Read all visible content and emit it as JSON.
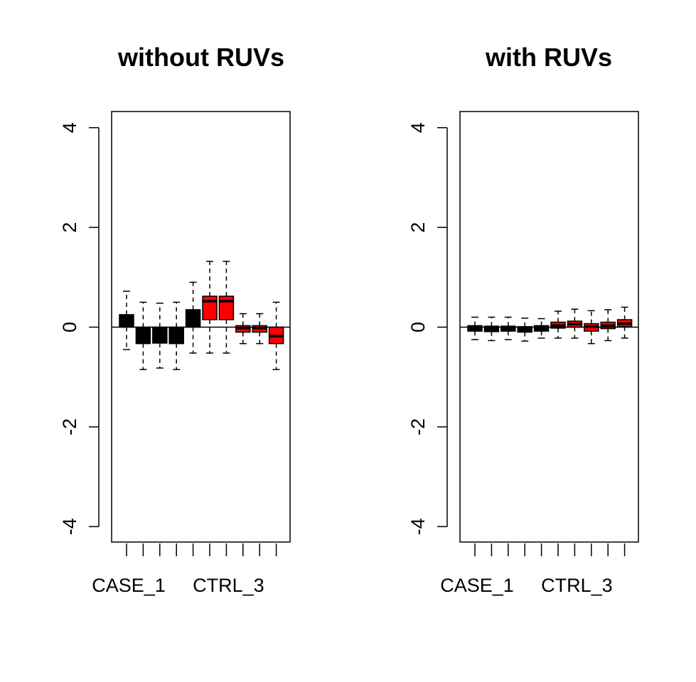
{
  "colors": {
    "case": "#000000",
    "ctrl": "#ff0000",
    "median": "#000000",
    "axis": "#000000",
    "background": "#ffffff"
  },
  "chart_data": [
    {
      "type": "boxplot",
      "title": "without RUVs",
      "xlabel": "",
      "ylabel": "",
      "ylim": [
        -4.3,
        4.3
      ],
      "yticks": [
        -4,
        -2,
        0,
        2,
        4
      ],
      "ytick_labels": [
        "-4",
        "-2",
        "0",
        "2",
        "4"
      ],
      "reference_line": 0,
      "n_boxes": 10,
      "visible_category_labels": [
        {
          "index": 0,
          "label": "CASE_1"
        },
        {
          "index": 6,
          "label": "CTRL_3"
        }
      ],
      "boxes": [
        {
          "group": "case",
          "whisker_low": -0.45,
          "q1": 0.0,
          "median": 0.15,
          "q3": 0.25,
          "whisker_high": 0.72
        },
        {
          "group": "case",
          "whisker_low": -0.85,
          "q1": -0.33,
          "median": -0.2,
          "q3": 0.0,
          "whisker_high": 0.5
        },
        {
          "group": "case",
          "whisker_low": -0.82,
          "q1": -0.32,
          "median": -0.18,
          "q3": 0.0,
          "whisker_high": 0.48
        },
        {
          "group": "case",
          "whisker_low": -0.85,
          "q1": -0.33,
          "median": -0.2,
          "q3": 0.0,
          "whisker_high": 0.5
        },
        {
          "group": "case",
          "whisker_low": -0.52,
          "q1": 0.0,
          "median": 0.2,
          "q3": 0.35,
          "whisker_high": 0.9
        },
        {
          "group": "ctrl",
          "whisker_low": -0.52,
          "q1": 0.15,
          "median": 0.52,
          "q3": 0.62,
          "whisker_high": 1.32
        },
        {
          "group": "ctrl",
          "whisker_low": -0.52,
          "q1": 0.15,
          "median": 0.52,
          "q3": 0.62,
          "whisker_high": 1.32
        },
        {
          "group": "ctrl",
          "whisker_low": -0.33,
          "q1": -0.1,
          "median": -0.02,
          "q3": 0.03,
          "whisker_high": 0.27
        },
        {
          "group": "ctrl",
          "whisker_low": -0.33,
          "q1": -0.1,
          "median": -0.02,
          "q3": 0.03,
          "whisker_high": 0.27
        },
        {
          "group": "ctrl",
          "whisker_low": -0.85,
          "q1": -0.33,
          "median": -0.18,
          "q3": 0.0,
          "whisker_high": 0.5
        }
      ]
    },
    {
      "type": "boxplot",
      "title": "with RUVs",
      "xlabel": "",
      "ylabel": "",
      "ylim": [
        -4.3,
        4.3
      ],
      "yticks": [
        -4,
        -2,
        0,
        2,
        4
      ],
      "ytick_labels": [
        "-4",
        "-2",
        "0",
        "2",
        "4"
      ],
      "reference_line": 0,
      "n_boxes": 10,
      "visible_category_labels": [
        {
          "index": 0,
          "label": "CASE_1"
        },
        {
          "index": 6,
          "label": "CTRL_3"
        }
      ],
      "boxes": [
        {
          "group": "case",
          "whisker_low": -0.25,
          "q1": -0.08,
          "median": -0.02,
          "q3": 0.03,
          "whisker_high": 0.2
        },
        {
          "group": "case",
          "whisker_low": -0.27,
          "q1": -0.09,
          "median": -0.03,
          "q3": 0.02,
          "whisker_high": 0.2
        },
        {
          "group": "case",
          "whisker_low": -0.25,
          "q1": -0.08,
          "median": -0.02,
          "q3": 0.02,
          "whisker_high": 0.2
        },
        {
          "group": "case",
          "whisker_low": -0.28,
          "q1": -0.1,
          "median": -0.04,
          "q3": 0.01,
          "whisker_high": 0.18
        },
        {
          "group": "case",
          "whisker_low": -0.22,
          "q1": -0.08,
          "median": -0.02,
          "q3": 0.03,
          "whisker_high": 0.17
        },
        {
          "group": "ctrl",
          "whisker_low": -0.22,
          "q1": -0.02,
          "median": 0.03,
          "q3": 0.1,
          "whisker_high": 0.32
        },
        {
          "group": "ctrl",
          "whisker_low": -0.22,
          "q1": 0.0,
          "median": 0.06,
          "q3": 0.12,
          "whisker_high": 0.36
        },
        {
          "group": "ctrl",
          "whisker_low": -0.33,
          "q1": -0.08,
          "median": 0.01,
          "q3": 0.07,
          "whisker_high": 0.33
        },
        {
          "group": "ctrl",
          "whisker_low": -0.27,
          "q1": -0.03,
          "median": 0.03,
          "q3": 0.1,
          "whisker_high": 0.35
        },
        {
          "group": "ctrl",
          "whisker_low": -0.22,
          "q1": 0.01,
          "median": 0.07,
          "q3": 0.15,
          "whisker_high": 0.4
        }
      ]
    }
  ]
}
